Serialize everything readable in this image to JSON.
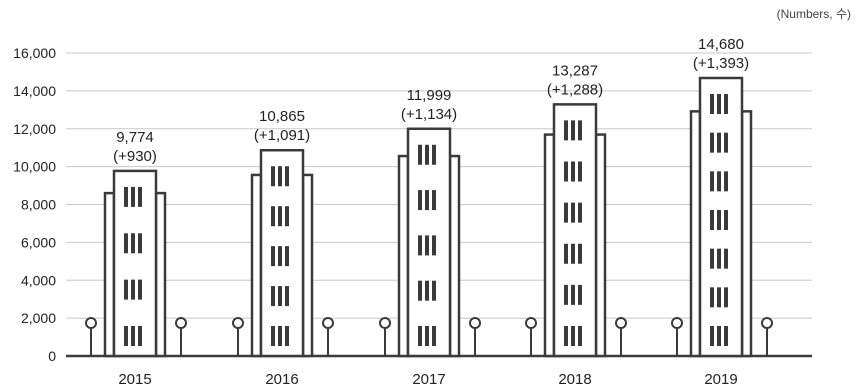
{
  "unit_label": "(Numbers, 수)",
  "chart_data": {
    "type": "bar",
    "style": "building pictogram bars",
    "categories": [
      "2015",
      "2016",
      "2017",
      "2018",
      "2019"
    ],
    "values": [
      9774,
      10865,
      11999,
      13287,
      14680
    ],
    "value_labels": [
      "9,774",
      "10,865",
      "11,999",
      "13,287",
      "14,680"
    ],
    "change_labels": [
      "(+930)",
      "(+1,091)",
      "(+1,134)",
      "(+1,288)",
      "(+1,393)"
    ],
    "changes": [
      930,
      1091,
      1134,
      1288,
      1393
    ],
    "ylim": [
      0,
      16000
    ],
    "yticks": [
      0,
      2000,
      4000,
      6000,
      8000,
      10000,
      12000,
      14000,
      16000
    ],
    "ytick_labels": [
      "0",
      "2,000",
      "4,000",
      "6,000",
      "8,000",
      "10,000",
      "12,000",
      "14,000",
      "16,000"
    ],
    "grid": true,
    "xlabel": "",
    "ylabel": "",
    "colors": {
      "stroke": "#3a3a3a",
      "grid": "#c8c8c8",
      "text": "#222222"
    }
  }
}
